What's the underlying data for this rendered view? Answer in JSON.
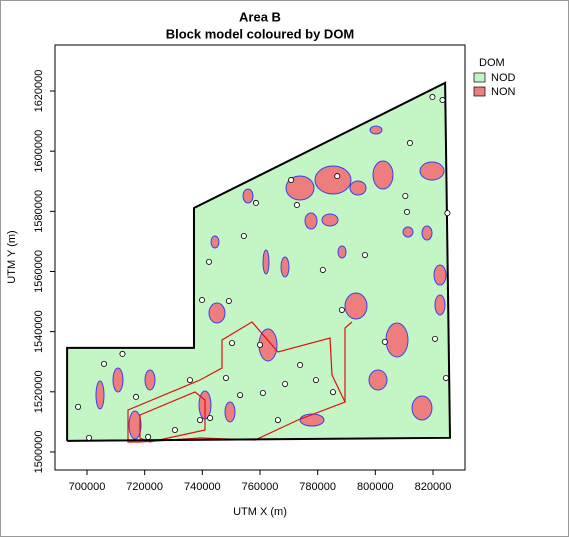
{
  "chart_data": {
    "type": "scatter",
    "title": "Area B",
    "subtitle": "Block model coloured by DOM",
    "x_label": "UTM X (m)",
    "y_label": "UTM Y (m)",
    "xlim": [
      688900,
      831100
    ],
    "ylim": [
      1494000,
      1635300
    ],
    "xticks": [
      700000,
      720000,
      740000,
      760000,
      780000,
      800000,
      820000
    ],
    "yticks": [
      1500000,
      1520000,
      1540000,
      1560000,
      1580000,
      1600000,
      1620000
    ],
    "legend": {
      "title": "DOM",
      "position": "right",
      "entries": [
        {
          "name": "NOD",
          "color": "#c4f5c4"
        },
        {
          "name": "NON",
          "color": "#ee7d7d"
        }
      ]
    },
    "boundary": {
      "x": [
        693100,
        693100,
        737100,
        737100,
        824200,
        825900,
        693100
      ],
      "y": [
        1503700,
        1534600,
        1534600,
        1581100,
        1622700,
        1504700,
        1503700
      ]
    },
    "x": [
      823300,
      819800,
      810400,
      786800,
      770800,
      758600,
      825000,
      811000,
      754400,
      781800,
      742300,
      739900,
      749200,
      788400,
      820700,
      824500,
      696900,
      705900,
      712300,
      717000,
      721200,
      730500,
      739200,
      748200,
      753100,
      761000,
      768700,
      773900,
      779400,
      785300,
      750300,
      760000,
      735700,
      742700,
      700700,
      766200,
      803300,
      796400,
      772800,
      812000
    ],
    "y": [
      1617000,
      1618000,
      1585100,
      1591700,
      1590400,
      1582800,
      1579400,
      1579800,
      1571800,
      1560500,
      1563200,
      1550500,
      1550200,
      1547200,
      1537600,
      1524600,
      1515000,
      1529300,
      1532600,
      1518300,
      1505000,
      1507300,
      1510600,
      1524600,
      1518900,
      1519600,
      1522600,
      1528900,
      1523900,
      1519900,
      1536200,
      1535600,
      1523900,
      1511300,
      1504700,
      1510600,
      1536600,
      1565500,
      1582100,
      1602700
    ]
  }
}
